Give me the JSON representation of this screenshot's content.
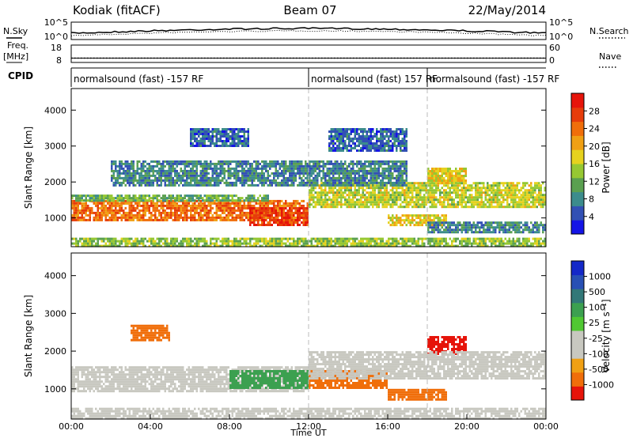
{
  "header": {
    "radar": "Kodiak (fitACF)",
    "beam": "Beam 07",
    "date": "22/May/2014"
  },
  "noise_panel": {
    "left_label": "N.Sky",
    "right_label": "N.Search",
    "yticks_left": [
      "10^5",
      "10^0"
    ],
    "yticks_right": [
      "10^5",
      "10^0"
    ]
  },
  "freq_panel": {
    "left_label_top": "Freq.",
    "left_label_bottom": "[MHz]",
    "right_label": "Nave",
    "yticks_left": [
      "18",
      "8"
    ],
    "yticks_right": [
      "60",
      "0"
    ],
    "freq_mhz": 10.5,
    "nave": 15
  },
  "cpid": {
    "label": "CPID",
    "segments": [
      {
        "start_h": 0,
        "end_h": 12,
        "text": "normalsound (fast) -157 RF"
      },
      {
        "start_h": 12,
        "end_h": 18,
        "text": "normalsound (fast) 157 RF"
      },
      {
        "start_h": 18,
        "end_h": 24,
        "text": "normalsound (fast) -157 RF"
      }
    ]
  },
  "chart_data": [
    {
      "type": "heatmap",
      "id": "power",
      "ylabel": "Slant Range [km]",
      "ylim": [
        200,
        4600
      ],
      "yticks": [
        1000,
        2000,
        3000,
        4000
      ],
      "xlim_hours": [
        0,
        24
      ],
      "colorbar_label": "Power [dB]",
      "colorbar_ticks": [
        "28",
        "24",
        "20",
        "16",
        "12",
        "8",
        "4"
      ],
      "colorbar_range": [
        0,
        32
      ],
      "colors": [
        "#1414e6",
        "#3250b4",
        "#3c8c8c",
        "#5aa050",
        "#96c832",
        "#e6d21e",
        "#f0a014",
        "#f06e0a",
        "#e63c0a",
        "#e6140a"
      ],
      "regions": [
        {
          "t0": 0,
          "t1": 12,
          "r0": 950,
          "r1": 1500,
          "value": 24
        },
        {
          "t0": 0,
          "t1": 10,
          "r0": 1500,
          "r1": 1650,
          "value": 12
        },
        {
          "t0": 9,
          "t1": 12,
          "r0": 800,
          "r1": 1300,
          "value": 28
        },
        {
          "t0": 12,
          "t1": 24,
          "r0": 1300,
          "r1": 2000,
          "value": 16
        },
        {
          "t0": 16,
          "t1": 19,
          "r0": 800,
          "r1": 1100,
          "value": 18
        },
        {
          "t0": 18,
          "t1": 20,
          "r0": 2000,
          "r1": 2400,
          "value": 18
        },
        {
          "t0": 18,
          "t1": 24,
          "r0": 600,
          "r1": 900,
          "value": 8
        },
        {
          "t0": 2,
          "t1": 17,
          "r0": 1900,
          "r1": 2600,
          "value": 8
        },
        {
          "t0": 6,
          "t1": 9,
          "r0": 3000,
          "r1": 3500,
          "value": 6
        },
        {
          "t0": 13,
          "t1": 17,
          "r0": 2900,
          "r1": 3500,
          "value": 6
        },
        {
          "t0": 0,
          "t1": 24,
          "r0": 200,
          "r1": 450,
          "value": 14
        }
      ]
    },
    {
      "type": "heatmap",
      "id": "velocity",
      "ylabel": "Slant Range [km]",
      "ylim": [
        200,
        4600
      ],
      "yticks": [
        1000,
        2000,
        3000,
        4000
      ],
      "xlim_hours": [
        0,
        24
      ],
      "xticks": [
        "00:00",
        "04:00",
        "08:00",
        "12:00",
        "16:00",
        "20:00",
        "00:00"
      ],
      "xlabel": "Time UT",
      "colorbar_label": "Velocity [m s⁻¹]",
      "colorbar_ticks": [
        "1000",
        "500",
        "100",
        "25",
        "-25",
        "-100",
        "-500",
        "-1000"
      ],
      "colors": [
        "#e6140a",
        "#f06e0a",
        "#f0a014",
        "#c8c8c0",
        "#c8c8c0",
        "#50c832",
        "#3ca050",
        "#327878",
        "#2850b4",
        "#1428c8"
      ],
      "regions": [
        {
          "t0": 0,
          "t1": 12,
          "r0": 950,
          "r1": 1600,
          "value": 0
        },
        {
          "t0": 8,
          "t1": 12,
          "r0": 1000,
          "r1": 1500,
          "value": 200
        },
        {
          "t0": 12,
          "t1": 16,
          "r0": 1000,
          "r1": 1500,
          "value": -300
        },
        {
          "t0": 16,
          "t1": 19,
          "r0": 700,
          "r1": 1000,
          "value": -200
        },
        {
          "t0": 18,
          "t1": 20,
          "r0": 1900,
          "r1": 2400,
          "value": -800
        },
        {
          "t0": 12,
          "t1": 24,
          "r0": 1300,
          "r1": 2000,
          "value": 0
        },
        {
          "t0": 3,
          "t1": 5,
          "r0": 2300,
          "r1": 2700,
          "value": -200
        },
        {
          "t0": 0,
          "t1": 24,
          "r0": 200,
          "r1": 500,
          "value": 0
        }
      ]
    }
  ]
}
